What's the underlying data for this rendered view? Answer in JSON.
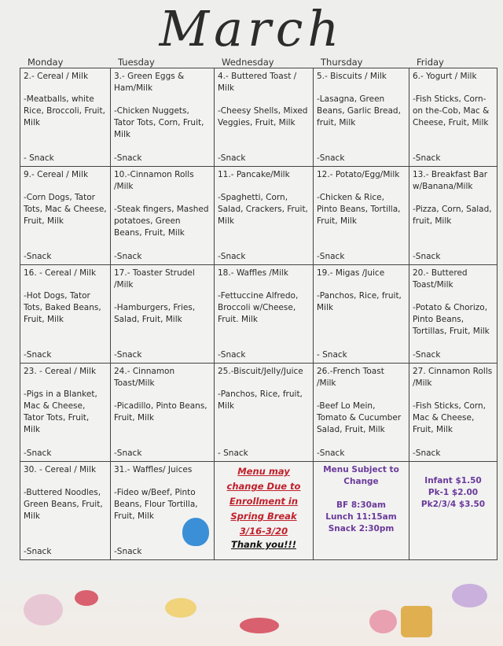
{
  "title": "March",
  "days": [
    "Monday",
    "Tuesday",
    "Wednesday",
    "Thursday",
    "Friday"
  ],
  "weeks": [
    [
      {
        "top": "2.- Cereal / Milk",
        "main": "-Meatballs, white Rice, Broccoli, Fruit, Milk",
        "snack": "- Snack"
      },
      {
        "top": "3.- Green Eggs & Ham/Milk",
        "main": "-Chicken Nuggets, Tator Tots, Corn, Fruit, Milk",
        "snack": "-Snack"
      },
      {
        "top": "4.- Buttered Toast / Milk",
        "main": "-Cheesy Shells, Mixed Veggies, Fruit, Milk",
        "snack": "-Snack"
      },
      {
        "top": "5.- Biscuits / Milk",
        "main": "-Lasagna, Green Beans, Garlic Bread, fruit, Milk",
        "snack": "-Snack"
      },
      {
        "top": "6.- Yogurt / Milk",
        "main": "-Fish Sticks, Corn-on the-Cob, Mac & Cheese, Fruit, Milk",
        "snack": "-Snack"
      }
    ],
    [
      {
        "top": "9.- Cereal / Milk",
        "main": "-Corn Dogs, Tator Tots, Mac & Cheese, Fruit, Milk",
        "snack": "-Snack"
      },
      {
        "top": "10.-Cinnamon Rolls /Milk",
        "main": "-Steak fingers, Mashed potatoes, Green Beans, Fruit, Milk",
        "snack": "-Snack"
      },
      {
        "top": "11.- Pancake/Milk",
        "main": "-Spaghetti, Corn, Salad, Crackers, Fruit, Milk",
        "snack": "-Snack"
      },
      {
        "top": "12.- Potato/Egg/Milk",
        "main": "-Chicken & Rice, Pinto Beans, Tortilla, Fruit, Milk",
        "snack": "-Snack"
      },
      {
        "top": "13.- Breakfast Bar w/Banana/Milk",
        "main": "-Pizza, Corn, Salad, fruit, Milk",
        "snack": "-Snack"
      }
    ],
    [
      {
        "top": "16. - Cereal / Milk",
        "main": "-Hot Dogs, Tator Tots, Baked Beans, Fruit, Milk",
        "snack": "-Snack"
      },
      {
        "top": "17.- Toaster Strudel /Milk",
        "main": "-Hamburgers, Fries, Salad, Fruit, Milk",
        "snack": "-Snack"
      },
      {
        "top": "18.- Waffles /Milk",
        "main": "-Fettuccine Alfredo, Broccoli w/Cheese, Fruit. Milk",
        "snack": "-Snack"
      },
      {
        "top": "19.- Migas /Juice",
        "main": "-Panchos, Rice, fruit, Milk",
        "snack": "- Snack"
      },
      {
        "top": "20.- Buttered Toast/Milk",
        "main": "-Potato & Chorizo, Pinto Beans, Tortillas, Fruit, Milk",
        "snack": "-Snack"
      }
    ],
    [
      {
        "top": "23. - Cereal / Milk",
        "main": "-Pigs in a Blanket, Mac & Cheese, Tator Tots, Fruit, Milk",
        "snack": "-Snack"
      },
      {
        "top": "24.- Cinnamon Toast/Milk",
        "main": "-Picadillo, Pinto Beans, Fruit, Milk",
        "snack": "-Snack"
      },
      {
        "top": "25.-Biscuit/Jelly/Juice",
        "main": "-Panchos, Rice, fruit, Milk",
        "snack": "- Snack"
      },
      {
        "top": "26.-French Toast /Milk",
        "main": "-Beef Lo Mein, Tomato & Cucumber Salad, Fruit, Milk",
        "snack": "-Snack"
      },
      {
        "top": "27. Cinnamon Rolls /Milk",
        "main": "-Fish Sticks, Corn, Mac & Cheese, Fruit, Milk",
        "snack": "-Snack"
      }
    ]
  ],
  "last_week": [
    {
      "top": "30. - Cereal / Milk",
      "main": "-Buttered Noodles, Green Beans, Fruit, Milk",
      "snack": "-Snack"
    },
    {
      "top": "31.- Waffles/ Juices",
      "main": "-Fideo w/Beef, Pinto Beans, Flour Tortilla, Fruit, Milk",
      "snack": "-Snack"
    }
  ],
  "notice": {
    "lines": [
      "Menu may",
      "change Due to",
      "Enrollment in",
      "Spring Break",
      "3/16-3/20"
    ],
    "thanks": "Thank you!!!"
  },
  "schedule": {
    "heading": "Menu Subject to Change",
    "bf": "BF 8:30am",
    "lunch": "Lunch 11:15am",
    "snack": "Snack 2:30pm"
  },
  "prices": [
    "Infant $1.50",
    "Pk-1 $2.00",
    "Pk2/3/4 $3.50"
  ],
  "colors": {
    "notice": "#c0202a",
    "purple": "#6a3a9a"
  }
}
